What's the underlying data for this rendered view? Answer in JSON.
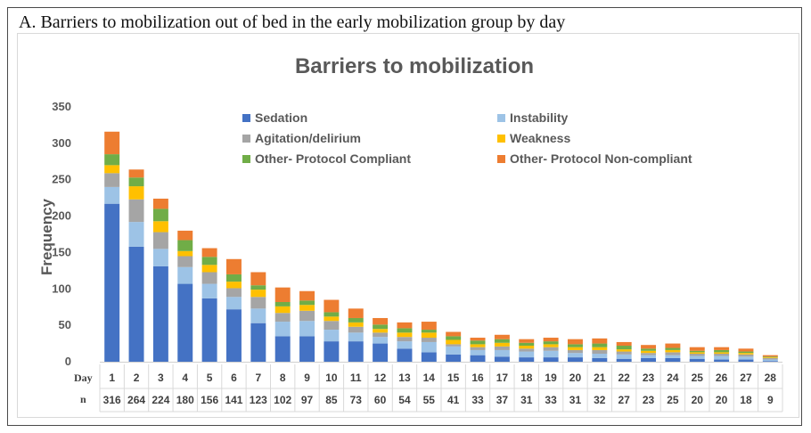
{
  "figure": {
    "caption": "A. Barriers to mobilization out of bed in the early mobilization group by day"
  },
  "chart_data": {
    "type": "bar",
    "stacked": true,
    "title": "Barriers to mobilization",
    "ylabel": "Frequency",
    "ylim": [
      0,
      350
    ],
    "yticks": [
      0,
      50,
      100,
      150,
      200,
      250,
      300,
      350
    ],
    "grid": false,
    "legend_position": "top-right",
    "table_row_labels": {
      "day": "Day",
      "n": "n"
    },
    "categories": [
      "1",
      "2",
      "3",
      "4",
      "5",
      "6",
      "7",
      "8",
      "9",
      "10",
      "11",
      "12",
      "13",
      "14",
      "15",
      "16",
      "17",
      "18",
      "19",
      "20",
      "21",
      "22",
      "23",
      "24",
      "25",
      "26",
      "27",
      "28"
    ],
    "n_values": [
      "316",
      "264",
      "224",
      "180",
      "156",
      "141",
      "123",
      "102",
      "97",
      "85",
      "73",
      "60",
      "54",
      "55",
      "41",
      "33",
      "37",
      "31",
      "33",
      "31",
      "32",
      "27",
      "23",
      "25",
      "20",
      "20",
      "18",
      "9"
    ],
    "series": [
      {
        "name": "Sedation",
        "color": "#4472c4",
        "values": [
          217,
          158,
          131,
          107,
          87,
          72,
          53,
          35,
          35,
          28,
          28,
          25,
          18,
          13,
          10,
          9,
          7,
          6,
          6,
          6,
          5,
          4,
          5,
          5,
          4,
          3,
          3,
          1
        ]
      },
      {
        "name": "Instability",
        "color": "#9dc3e6",
        "values": [
          23,
          34,
          24,
          23,
          20,
          17,
          20,
          20,
          21,
          16,
          12,
          9,
          10,
          14,
          11,
          7,
          9,
          8,
          9,
          6,
          6,
          6,
          4,
          4,
          4,
          5,
          4,
          2
        ]
      },
      {
        "name": "Agitation/delirium",
        "color": "#a5a5a5",
        "values": [
          19,
          31,
          23,
          15,
          16,
          12,
          16,
          12,
          14,
          12,
          8,
          6,
          6,
          6,
          3,
          4,
          5,
          4,
          5,
          4,
          5,
          4,
          3,
          4,
          3,
          3,
          3,
          2
        ]
      },
      {
        "name": "Weakness",
        "color": "#ffc000",
        "values": [
          11,
          18,
          15,
          7,
          10,
          9,
          10,
          9,
          8,
          6,
          6,
          5,
          6,
          7,
          6,
          4,
          5,
          4,
          4,
          4,
          4,
          3,
          3,
          3,
          2,
          2,
          2,
          1
        ]
      },
      {
        "name": "Other- Protocol Compliant",
        "color": "#70ad47",
        "values": [
          15,
          12,
          17,
          15,
          11,
          10,
          6,
          6,
          6,
          6,
          6,
          6,
          6,
          4,
          5,
          5,
          5,
          4,
          4,
          4,
          5,
          5,
          3,
          3,
          2,
          3,
          2,
          1
        ]
      },
      {
        "name": "Other- Protocol Non-compliant",
        "color": "#ed7d31",
        "values": [
          31,
          11,
          14,
          13,
          12,
          21,
          18,
          20,
          13,
          17,
          13,
          9,
          8,
          11,
          6,
          4,
          6,
          5,
          5,
          7,
          7,
          5,
          5,
          6,
          5,
          4,
          4,
          2
        ]
      }
    ]
  }
}
